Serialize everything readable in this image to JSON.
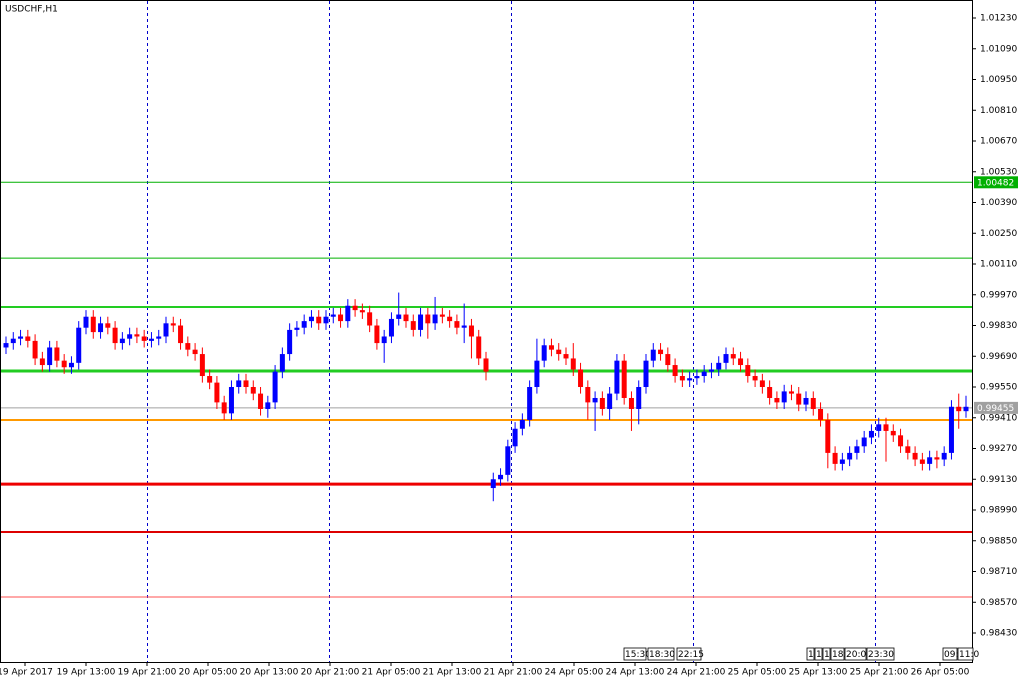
{
  "chart_data": {
    "type": "candlestick",
    "title": "USDCHF,H1",
    "ylim": [
      0.98298,
      1.01312
    ],
    "yticks": [
      {
        "value": 1.0123,
        "label": "1.01230"
      },
      {
        "value": 1.0109,
        "label": "1.01090"
      },
      {
        "value": 1.0095,
        "label": "1.00950"
      },
      {
        "value": 1.0081,
        "label": "1.00810"
      },
      {
        "value": 1.0067,
        "label": "1.00670"
      },
      {
        "value": 1.0053,
        "label": "1.00530"
      },
      {
        "value": 1.0039,
        "label": "1.00390"
      },
      {
        "value": 1.0025,
        "label": "1.00250"
      },
      {
        "value": 1.0011,
        "label": "1.00110"
      },
      {
        "value": 0.9997,
        "label": "0.99970"
      },
      {
        "value": 0.9983,
        "label": "0.99830"
      },
      {
        "value": 0.9969,
        "label": "0.99690"
      },
      {
        "value": 0.9955,
        "label": "0.99550"
      },
      {
        "value": 0.9941,
        "label": "0.99410"
      },
      {
        "value": 0.9927,
        "label": "0.99270"
      },
      {
        "value": 0.9913,
        "label": "0.99130"
      },
      {
        "value": 0.9899,
        "label": "0.98990"
      },
      {
        "value": 0.9885,
        "label": "0.98850"
      },
      {
        "value": 0.9871,
        "label": "0.98710"
      },
      {
        "value": 0.9857,
        "label": "0.98570"
      },
      {
        "value": 0.9843,
        "label": "0.98430"
      }
    ],
    "x_labels": [
      "19 Apr 2017",
      "19 Apr 13:00",
      "19 Apr 21:00",
      "20 Apr 05:00",
      "20 Apr 13:00",
      "20 Apr 21:00",
      "21 Apr 05:00",
      "21 Apr 13:00",
      "21 Apr 21:00",
      "24 Apr 05:00",
      "24 Apr 13:00",
      "24 Apr 21:00",
      "25 Apr 05:00",
      "25 Apr 13:00",
      "25 Apr 21:00",
      "26 Apr 05:00"
    ],
    "time_tags": [
      "15:30",
      "18:30",
      "22:15",
      "1",
      "1",
      "1",
      "18:",
      "20:00",
      "23:30",
      "09:",
      "11:0"
    ],
    "up_color": "#0000ff",
    "down_color": "#ff0000",
    "flat_color": "#00a000",
    "levels": [
      {
        "value": 1.00482,
        "color": "#00b000",
        "width": 1,
        "label": "1.00482"
      },
      {
        "value": 1.00137,
        "color": "#00b000",
        "width": 1
      },
      {
        "value": 0.99914,
        "color": "#22cc22",
        "width": 2
      },
      {
        "value": 0.99623,
        "color": "#22cc22",
        "width": 3
      },
      {
        "value": 0.99455,
        "color": "#a0a0a0",
        "width": 1,
        "label": "0.99455"
      },
      {
        "value": 0.994,
        "color": "#ff9900",
        "width": 2
      },
      {
        "value": 0.99108,
        "color": "#ee0000",
        "width": 3
      },
      {
        "value": 0.9889,
        "color": "#dd0000",
        "width": 2
      },
      {
        "value": 0.98594,
        "color": "#ff5050",
        "width": 1
      }
    ],
    "candles": [
      [
        0.9973,
        0.9978,
        0.997,
        0.9975
      ],
      [
        0.9975,
        0.998,
        0.9972,
        0.9977
      ],
      [
        0.9977,
        0.9981,
        0.9974,
        0.9978
      ],
      [
        0.9978,
        0.9981,
        0.9973,
        0.9976
      ],
      [
        0.9976,
        0.9979,
        0.9965,
        0.9968
      ],
      [
        0.9968,
        0.9971,
        0.9962,
        0.9965
      ],
      [
        0.9965,
        0.9976,
        0.9962,
        0.9973
      ],
      [
        0.9973,
        0.9976,
        0.9964,
        0.9967
      ],
      [
        0.9967,
        0.997,
        0.9961,
        0.9964
      ],
      [
        0.9964,
        0.9969,
        0.9961,
        0.9966
      ],
      [
        0.9966,
        0.9985,
        0.9963,
        0.9982
      ],
      [
        0.9982,
        0.999,
        0.9979,
        0.9987
      ],
      [
        0.9987,
        0.999,
        0.9977,
        0.998
      ],
      [
        0.998,
        0.9987,
        0.9977,
        0.9984
      ],
      [
        0.9984,
        0.9987,
        0.9979,
        0.9982
      ],
      [
        0.9982,
        0.9985,
        0.9972,
        0.9975
      ],
      [
        0.9975,
        0.998,
        0.9972,
        0.9977
      ],
      [
        0.9977,
        0.9982,
        0.9974,
        0.9979
      ],
      [
        0.9979,
        0.9982,
        0.9975,
        0.9978
      ],
      [
        0.9978,
        0.9981,
        0.9973,
        0.9976
      ],
      [
        0.9976,
        0.998,
        0.9973,
        0.9977
      ],
      [
        0.9977,
        0.9981,
        0.9974,
        0.9978
      ],
      [
        0.9978,
        0.9987,
        0.9975,
        0.9984
      ],
      [
        0.9984,
        0.9987,
        0.998,
        0.9983
      ],
      [
        0.9983,
        0.9986,
        0.9972,
        0.9975
      ],
      [
        0.9975,
        0.9978,
        0.9969,
        0.9972
      ],
      [
        0.9972,
        0.9975,
        0.9967,
        0.997
      ],
      [
        0.997,
        0.9973,
        0.9957,
        0.996
      ],
      [
        0.996,
        0.9963,
        0.9954,
        0.9957
      ],
      [
        0.9957,
        0.996,
        0.9945,
        0.9948
      ],
      [
        0.9948,
        0.9951,
        0.994,
        0.9943
      ],
      [
        0.9943,
        0.9958,
        0.994,
        0.9955
      ],
      [
        0.9955,
        0.9961,
        0.9952,
        0.9958
      ],
      [
        0.9958,
        0.9961,
        0.9952,
        0.9955
      ],
      [
        0.9955,
        0.9958,
        0.9949,
        0.9952
      ],
      [
        0.9952,
        0.9955,
        0.9942,
        0.9945
      ],
      [
        0.9945,
        0.9951,
        0.9941,
        0.9948
      ],
      [
        0.9948,
        0.9965,
        0.9945,
        0.9962
      ],
      [
        0.9962,
        0.9973,
        0.9959,
        0.997
      ],
      [
        0.997,
        0.9984,
        0.9967,
        0.9981
      ],
      [
        0.9981,
        0.9985,
        0.9978,
        0.9982
      ],
      [
        0.9982,
        0.9988,
        0.9979,
        0.9985
      ],
      [
        0.9985,
        0.999,
        0.9982,
        0.9987
      ],
      [
        0.9987,
        0.999,
        0.9981,
        0.9984
      ],
      [
        0.9984,
        0.999,
        0.9981,
        0.9987
      ],
      [
        0.9987,
        0.9991,
        0.9984,
        0.9988
      ],
      [
        0.9988,
        0.9991,
        0.9982,
        0.9985
      ],
      [
        0.9985,
        0.9995,
        0.9982,
        0.9992
      ],
      [
        0.9992,
        0.9995,
        0.9987,
        0.999
      ],
      [
        0.999,
        0.9993,
        0.9986,
        0.9989
      ],
      [
        0.9989,
        0.9992,
        0.998,
        0.9983
      ],
      [
        0.9983,
        0.9986,
        0.9972,
        0.9975
      ],
      [
        0.9975,
        0.9981,
        0.9966,
        0.9978
      ],
      [
        0.9978,
        0.9989,
        0.9975,
        0.9986
      ],
      [
        0.9986,
        0.9998,
        0.9983,
        0.9988
      ],
      [
        0.9988,
        0.9991,
        0.9982,
        0.9985
      ],
      [
        0.9985,
        0.9988,
        0.9978,
        0.9981
      ],
      [
        0.9981,
        0.9991,
        0.9978,
        0.9988
      ],
      [
        0.9988,
        0.9991,
        0.9977,
        0.9984
      ],
      [
        0.9984,
        0.9996,
        0.9981,
        0.9988
      ],
      [
        0.9988,
        0.9991,
        0.9984,
        0.9987
      ],
      [
        0.9987,
        0.999,
        0.9982,
        0.9985
      ],
      [
        0.9985,
        0.9988,
        0.9979,
        0.9982
      ],
      [
        0.9982,
        0.9993,
        0.9975,
        0.9983
      ],
      [
        0.9983,
        0.9986,
        0.9968,
        0.9978
      ],
      [
        0.9978,
        0.9981,
        0.9965,
        0.9968
      ],
      [
        0.9968,
        0.9971,
        0.9958,
        0.9962
      ],
      [
        0.9909,
        0.9916,
        0.9903,
        0.9913
      ],
      [
        0.9913,
        0.9918,
        0.991,
        0.9915
      ],
      [
        0.9915,
        0.9931,
        0.9912,
        0.9928
      ],
      [
        0.9928,
        0.9939,
        0.9925,
        0.9936
      ],
      [
        0.9936,
        0.9943,
        0.9933,
        0.994
      ],
      [
        0.994,
        0.9958,
        0.9937,
        0.9955
      ],
      [
        0.9955,
        0.9977,
        0.9952,
        0.9967
      ],
      [
        0.9967,
        0.9977,
        0.9964,
        0.9974
      ],
      [
        0.9974,
        0.9977,
        0.9969,
        0.9972
      ],
      [
        0.9972,
        0.9975,
        0.9967,
        0.997
      ],
      [
        0.997,
        0.9973,
        0.9965,
        0.9968
      ],
      [
        0.9968,
        0.9975,
        0.996,
        0.9963
      ],
      [
        0.9963,
        0.9966,
        0.9952,
        0.9955
      ],
      [
        0.9955,
        0.9958,
        0.994,
        0.9948
      ],
      [
        0.9948,
        0.9953,
        0.9935,
        0.995
      ],
      [
        0.995,
        0.9953,
        0.9942,
        0.9945
      ],
      [
        0.9945,
        0.9955,
        0.994,
        0.9952
      ],
      [
        0.9952,
        0.997,
        0.9949,
        0.9967
      ],
      [
        0.9967,
        0.997,
        0.9947,
        0.995
      ],
      [
        0.995,
        0.9953,
        0.9935,
        0.9945
      ],
      [
        0.9945,
        0.9958,
        0.9938,
        0.9955
      ],
      [
        0.9955,
        0.997,
        0.9952,
        0.9967
      ],
      [
        0.9967,
        0.9975,
        0.9964,
        0.9972
      ],
      [
        0.9972,
        0.9975,
        0.9967,
        0.997
      ],
      [
        0.997,
        0.9973,
        0.9962,
        0.9965
      ],
      [
        0.9965,
        0.9968,
        0.9957,
        0.996
      ],
      [
        0.996,
        0.9963,
        0.9955,
        0.9958
      ],
      [
        0.9958,
        0.9962,
        0.9955,
        0.9959
      ],
      [
        0.9959,
        0.9963,
        0.9956,
        0.996
      ],
      [
        0.996,
        0.9965,
        0.9957,
        0.9962
      ],
      [
        0.9962,
        0.9966,
        0.9959,
        0.9963
      ],
      [
        0.9963,
        0.9969,
        0.996,
        0.9966
      ],
      [
        0.9966,
        0.9973,
        0.9963,
        0.997
      ],
      [
        0.997,
        0.9973,
        0.9965,
        0.9968
      ],
      [
        0.9968,
        0.9971,
        0.9962,
        0.9965
      ],
      [
        0.9965,
        0.9968,
        0.9957,
        0.996
      ],
      [
        0.996,
        0.9963,
        0.9955,
        0.9958
      ],
      [
        0.9958,
        0.9961,
        0.9952,
        0.9955
      ],
      [
        0.9955,
        0.9958,
        0.9947,
        0.995
      ],
      [
        0.995,
        0.9953,
        0.9945,
        0.9948
      ],
      [
        0.9948,
        0.9956,
        0.9945,
        0.9953
      ],
      [
        0.9953,
        0.9956,
        0.9949,
        0.9952
      ],
      [
        0.9952,
        0.9955,
        0.9944,
        0.9947
      ],
      [
        0.9947,
        0.9953,
        0.9944,
        0.995
      ],
      [
        0.995,
        0.9953,
        0.9942,
        0.9945
      ],
      [
        0.9945,
        0.9948,
        0.9937,
        0.994
      ],
      [
        0.994,
        0.9943,
        0.9918,
        0.9925
      ],
      [
        0.9925,
        0.9928,
        0.9917,
        0.992
      ],
      [
        0.992,
        0.9925,
        0.9917,
        0.9922
      ],
      [
        0.9922,
        0.9928,
        0.9919,
        0.9925
      ],
      [
        0.9925,
        0.9931,
        0.9922,
        0.9928
      ],
      [
        0.9928,
        0.9935,
        0.9925,
        0.9932
      ],
      [
        0.9932,
        0.9938,
        0.9929,
        0.9935
      ],
      [
        0.9935,
        0.9941,
        0.9932,
        0.9938
      ],
      [
        0.9938,
        0.9941,
        0.9921,
        0.9935
      ],
      [
        0.9935,
        0.9938,
        0.993,
        0.9933
      ],
      [
        0.9933,
        0.9936,
        0.9925,
        0.9928
      ],
      [
        0.9928,
        0.9931,
        0.9922,
        0.9925
      ],
      [
        0.9925,
        0.9928,
        0.9919,
        0.9922
      ],
      [
        0.9922,
        0.9925,
        0.9917,
        0.992
      ],
      [
        0.992,
        0.9926,
        0.9917,
        0.9923
      ],
      [
        0.9923,
        0.9926,
        0.9918,
        0.9922
      ],
      [
        0.9922,
        0.9928,
        0.9919,
        0.9925
      ],
      [
        0.9925,
        0.9949,
        0.9922,
        0.9946
      ],
      [
        0.9946,
        0.9952,
        0.9936,
        0.9944
      ],
      [
        0.9944,
        0.9951,
        0.9941,
        0.9946
      ]
    ]
  }
}
